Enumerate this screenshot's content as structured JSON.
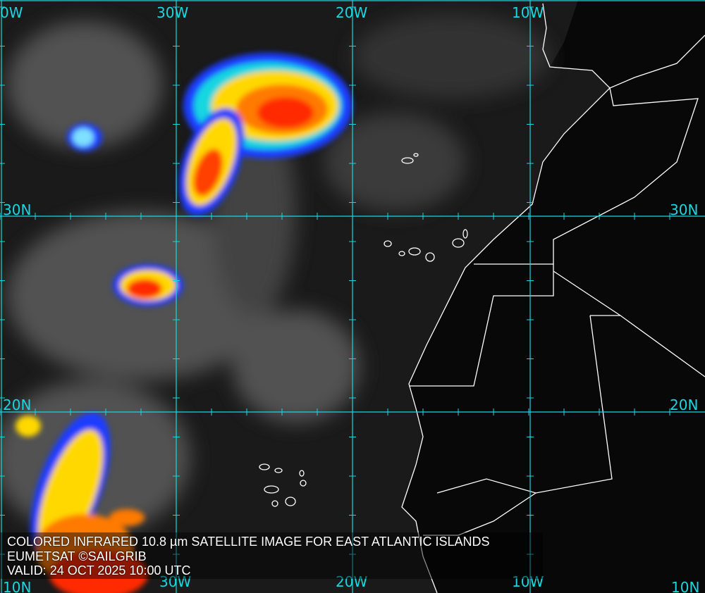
{
  "caption": {
    "title": "COLORED INFRARED 10.8 µm SATELLITE IMAGE FOR EAST ATLANTIC ISLANDS",
    "credit": "EUMETSAT ©SAILGRIB",
    "valid": "VALID:  24 OCT 2025 10:00 UTC"
  },
  "grid": {
    "longitude_labels_top": [
      "0W",
      "30W",
      "20W",
      "10W"
    ],
    "longitude_labels_bottom": [
      "30W",
      "20W",
      "10W"
    ],
    "latitude_labels_left": [
      "30N",
      "20N",
      "10N"
    ],
    "latitude_labels_right": [
      "30N",
      "20N",
      "10N"
    ]
  },
  "colors": {
    "grid": "#19d6e0",
    "coastline": "#ffffff",
    "cold_tops": "#ff2a00",
    "mid_tops": "#ffd800",
    "warm_tops": "#1e3cff"
  }
}
